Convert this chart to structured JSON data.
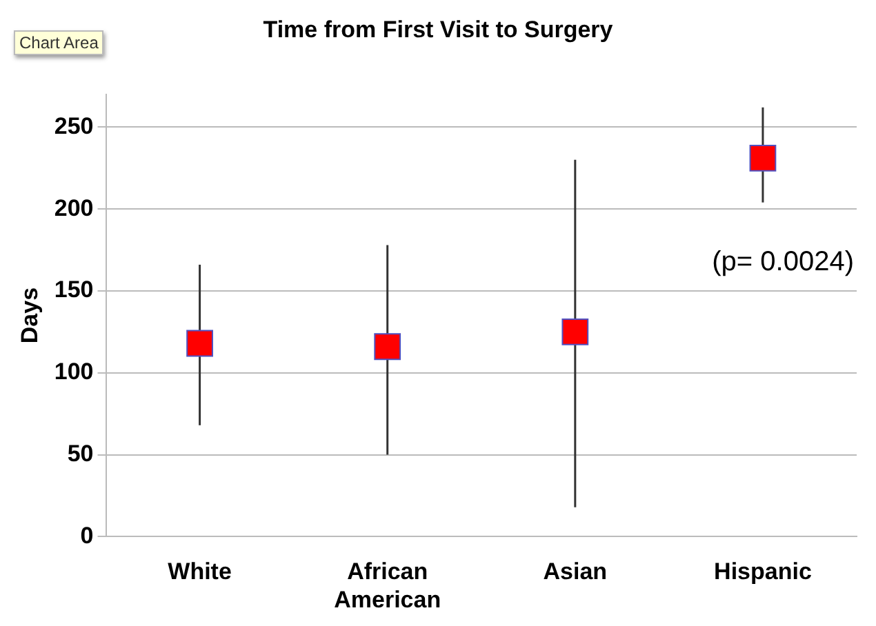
{
  "chart_data": {
    "type": "scatter",
    "title": "Time from First Visit to Surgery",
    "ylabel": "Days",
    "categories": [
      "White",
      "African\nAmerican",
      "Asian",
      "Hispanic"
    ],
    "series": [
      {
        "color": "#ff0000",
        "values": [
          118,
          116,
          125,
          231
        ],
        "errors": [
          [
            68,
            166
          ],
          [
            50,
            178
          ],
          [
            18,
            230
          ],
          [
            204,
            262
          ]
        ]
      }
    ],
    "ylim": [
      0,
      270
    ],
    "yticks": [
      0,
      50,
      100,
      150,
      200,
      250
    ],
    "grid": "y",
    "legend": false,
    "marker": "square",
    "annotations": [
      "(p= 0.0024)",
      "Chart Area"
    ]
  }
}
